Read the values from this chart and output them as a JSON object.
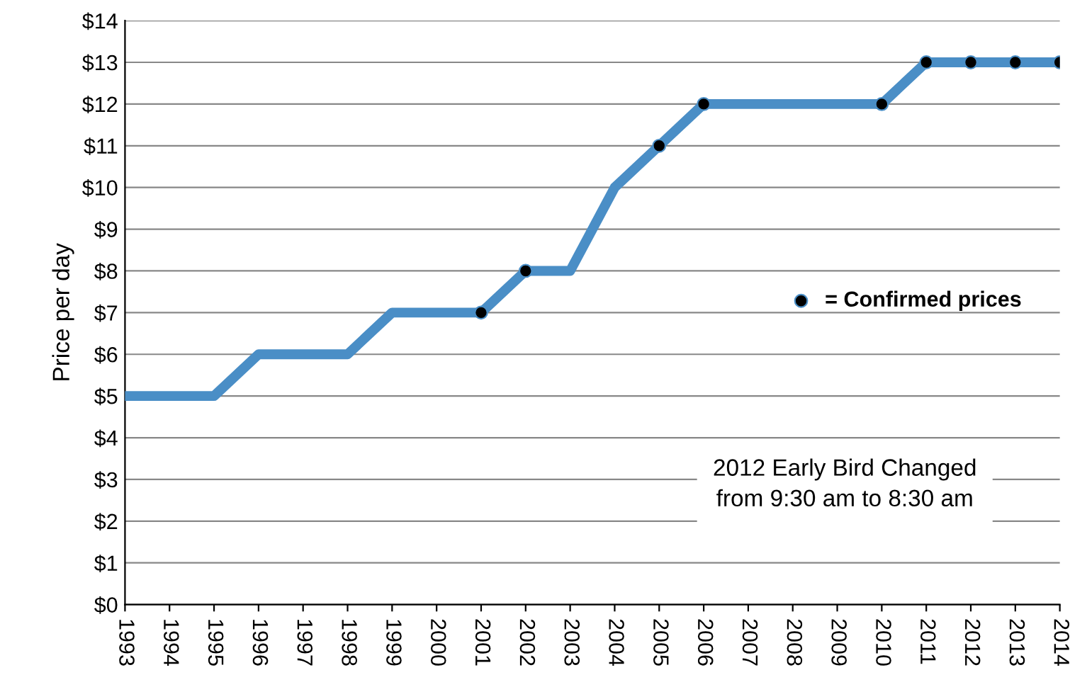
{
  "chart_data": {
    "type": "line",
    "ylabel": "Price per day",
    "categories": [
      "1993",
      "1994",
      "1995",
      "1996",
      "1997",
      "1998",
      "1999",
      "2000",
      "2001",
      "2002",
      "2003",
      "2004",
      "2005",
      "2006",
      "2007",
      "2008",
      "2009",
      "2010",
      "2011",
      "2012",
      "2013",
      "2014"
    ],
    "series": [
      {
        "color": "#4a8ec6",
        "values": [
          5,
          5,
          5,
          6,
          6,
          6,
          7,
          7,
          7,
          8,
          8,
          10,
          11,
          12,
          12,
          12,
          12,
          12,
          13,
          13,
          13,
          13
        ],
        "marker": "none"
      },
      {
        "type": "scatter",
        "name": "= Confirmed prices",
        "color": "#000000",
        "values": [
          null,
          null,
          null,
          null,
          null,
          null,
          null,
          null,
          7,
          8,
          null,
          null,
          11,
          12,
          null,
          null,
          null,
          12,
          13,
          13,
          13,
          13
        ],
        "marker": "circle"
      }
    ],
    "ylim": [
      0,
      14
    ],
    "yticks": [
      {
        "value": 0,
        "label": "$0"
      },
      {
        "value": 1,
        "label": "$1"
      },
      {
        "value": 2,
        "label": "$2"
      },
      {
        "value": 3,
        "label": "$3"
      },
      {
        "value": 4,
        "label": "$4"
      },
      {
        "value": 5,
        "label": "$5"
      },
      {
        "value": 6,
        "label": "$6"
      },
      {
        "value": 7,
        "label": "$7"
      },
      {
        "value": 8,
        "label": "$8"
      },
      {
        "value": 9,
        "label": "$9"
      },
      {
        "value": 10,
        "label": "$10"
      },
      {
        "value": 11,
        "label": "$11"
      },
      {
        "value": 12,
        "label": "$12"
      },
      {
        "value": 13,
        "label": "$13"
      },
      {
        "value": 14,
        "label": "$14"
      }
    ],
    "grid": "y",
    "legend": "right",
    "annotations": [
      "2012 Early Bird Changed\nfrom 9:30 am to 8:30 am"
    ]
  }
}
